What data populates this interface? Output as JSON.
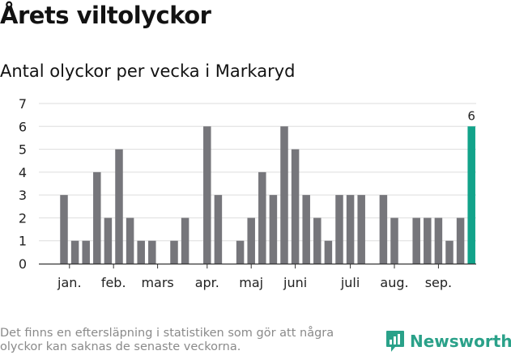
{
  "title": "Årets viltolyckor",
  "subtitle": "Antal olyckor per vecka i Markaryd",
  "footnote": "Det finns en eftersläpning i statistiken som gör att några olyckor kan saknas de senaste veckorna.",
  "brand": {
    "name": "Newsworthy",
    "icon": "newsworthy-logo-icon",
    "color": "#2aa189"
  },
  "chart_data": {
    "type": "bar",
    "title": "Antal olyckor per vecka i Markaryd",
    "xlabel": "",
    "ylabel": "",
    "ylim": [
      0,
      7
    ],
    "yticks": [
      0,
      1,
      2,
      3,
      4,
      5,
      6,
      7
    ],
    "grid": true,
    "bar_color": "#76767b",
    "highlight_color": "#12a38a",
    "highlight_index": 37,
    "highlight_label": "6",
    "values": [
      3,
      1,
      1,
      4,
      2,
      5,
      2,
      1,
      1,
      0,
      1,
      2,
      0,
      6,
      3,
      0,
      1,
      2,
      4,
      3,
      6,
      5,
      3,
      2,
      1,
      3,
      3,
      3,
      0,
      3,
      2,
      0,
      2,
      2,
      2,
      1,
      2,
      6
    ],
    "month_labels": [
      {
        "label": "jan.",
        "at_index": 0.5
      },
      {
        "label": "feb.",
        "at_index": 4.5
      },
      {
        "label": "mars",
        "at_index": 8.5
      },
      {
        "label": "apr.",
        "at_index": 13
      },
      {
        "label": "maj",
        "at_index": 17
      },
      {
        "label": "juni",
        "at_index": 21
      },
      {
        "label": "juli",
        "at_index": 26
      },
      {
        "label": "aug.",
        "at_index": 30
      },
      {
        "label": "sep.",
        "at_index": 34
      }
    ]
  }
}
